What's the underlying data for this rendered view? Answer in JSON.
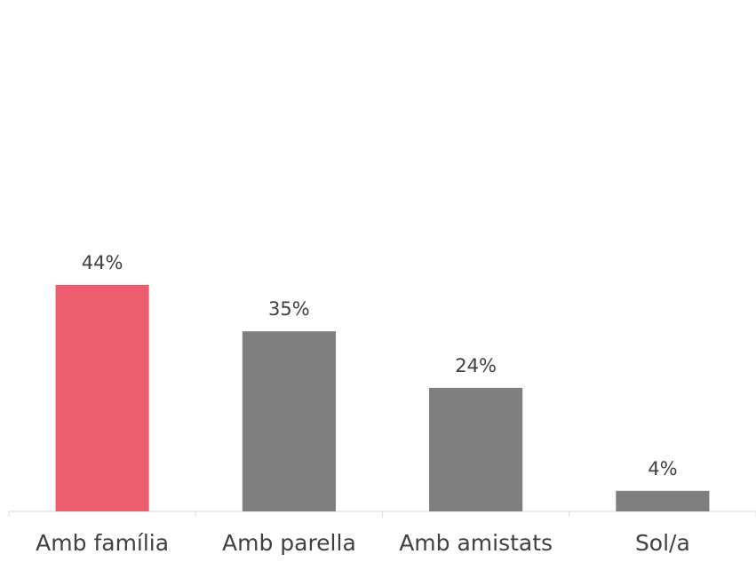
{
  "chart_data": {
    "type": "bar",
    "categories": [
      "Amb família",
      "Amb parella",
      "Amb amistats",
      "Sol/a"
    ],
    "values": [
      44,
      35,
      24,
      4
    ],
    "value_labels": [
      "44%",
      "35%",
      "24%",
      "4%"
    ],
    "colors": [
      "#eb5c6e",
      "#7f7f7f",
      "#7f7f7f",
      "#7f7f7f"
    ]
  }
}
